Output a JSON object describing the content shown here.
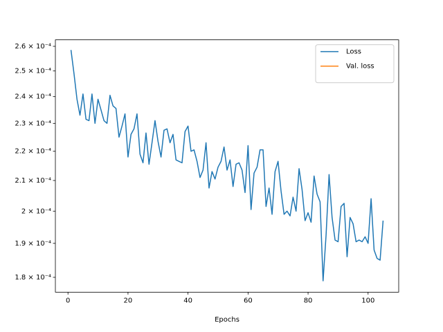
{
  "chart_data": {
    "type": "line",
    "xlabel": "Epochs",
    "x": [
      1,
      2,
      3,
      4,
      5,
      6,
      7,
      8,
      9,
      10,
      11,
      12,
      13,
      14,
      15,
      16,
      17,
      18,
      19,
      20,
      21,
      22,
      23,
      24,
      25,
      26,
      27,
      28,
      29,
      30,
      31,
      32,
      33,
      34,
      35,
      36,
      37,
      38,
      39,
      40,
      41,
      42,
      43,
      44,
      45,
      46,
      47,
      48,
      49,
      50,
      51,
      52,
      53,
      54,
      55,
      56,
      57,
      58,
      59,
      60,
      61,
      62,
      63,
      64,
      65,
      66,
      67,
      68,
      69,
      70,
      71,
      72,
      73,
      74,
      75,
      76,
      77,
      78,
      79,
      80,
      81,
      82,
      83,
      84,
      85,
      86,
      87,
      88,
      89,
      90,
      91,
      92,
      93,
      94,
      95,
      96,
      97,
      98,
      99,
      100,
      101,
      102,
      103,
      104,
      105
    ],
    "series": [
      {
        "name": "Loss",
        "color": "#1f77b4",
        "values": [
          0.0002585,
          0.000249,
          0.000239,
          0.000233,
          0.000241,
          0.0002315,
          0.000231,
          0.000241,
          0.00023,
          0.000239,
          0.000235,
          0.000231,
          0.00023,
          0.0002405,
          0.0002365,
          0.0002355,
          0.000225,
          0.000229,
          0.0002335,
          0.000218,
          0.000226,
          0.000228,
          0.0002335,
          0.000219,
          0.000216,
          0.0002265,
          0.0002155,
          0.000223,
          0.000231,
          0.0002235,
          0.000218,
          0.0002275,
          0.000228,
          0.000223,
          0.000226,
          0.000217,
          0.0002165,
          0.000216,
          0.000227,
          0.000229,
          0.00022,
          0.0002205,
          0.0002165,
          0.000211,
          0.0002135,
          0.000223,
          0.0002075,
          0.000213,
          0.0002105,
          0.0002145,
          0.0002165,
          0.0002215,
          0.0002135,
          0.000217,
          0.000208,
          0.0002155,
          0.000216,
          0.0002135,
          0.000206,
          0.000222,
          0.0002005,
          0.0002125,
          0.0002145,
          0.0002205,
          0.0002205,
          0.0002015,
          0.0002075,
          0.000199,
          0.000213,
          0.0002165,
          0.0002065,
          0.000199,
          0.0002,
          0.0001985,
          0.0002045,
          0.0002,
          0.000214,
          0.000207,
          0.000197,
          0.0001995,
          0.0001965,
          0.0002115,
          0.0002055,
          0.000203,
          0.000179,
          0.0001925,
          0.000212,
          0.000198,
          0.000191,
          0.0001905,
          0.0002015,
          0.0002025,
          0.000186,
          0.000198,
          0.000196,
          0.0001905,
          0.000191,
          0.0001905,
          0.000192,
          0.00019,
          0.000204,
          0.000188,
          0.0001855,
          0.000185,
          0.000197
        ]
      },
      {
        "name": "Val. loss",
        "color": "#ff7f0e",
        "values": [
          null,
          null,
          null,
          null,
          null,
          null,
          null,
          null,
          null,
          null,
          null,
          null,
          null,
          null,
          null,
          null,
          null,
          null,
          null,
          null,
          null,
          null,
          null,
          null,
          null,
          null,
          null,
          null,
          null,
          null,
          null,
          null,
          null,
          null,
          null,
          null,
          null,
          null,
          null,
          null,
          null,
          null,
          null,
          null,
          null,
          null,
          null,
          null,
          null,
          null,
          null,
          null,
          null,
          null,
          null,
          null,
          null,
          null,
          null,
          null,
          null,
          null,
          null,
          null,
          null,
          null,
          null,
          null,
          null,
          null,
          null,
          null,
          null,
          null,
          null,
          null,
          null,
          null,
          null,
          null,
          null,
          null,
          null,
          null,
          null,
          null,
          null,
          null,
          null,
          null,
          null,
          null,
          null,
          null,
          null,
          null,
          null,
          null,
          null,
          null,
          null,
          null,
          null,
          null,
          null
        ]
      }
    ],
    "xlim": [
      -4.2,
      110.2
    ],
    "xticks": [
      0,
      20,
      40,
      60,
      80,
      100
    ],
    "ylim": [
      0.0001758,
      0.0002627
    ],
    "yscale": "log",
    "yticks": [
      {
        "value": 0.00018,
        "label": "1.8 × 10⁻⁴"
      },
      {
        "value": 0.00019,
        "label": "1.9 × 10⁻⁴"
      },
      {
        "value": 0.0002,
        "label": "2 × 10⁻⁴"
      },
      {
        "value": 0.00021,
        "label": "2.1 × 10⁻⁴"
      },
      {
        "value": 0.00022,
        "label": "2.2 × 10⁻⁴"
      },
      {
        "value": 0.00023,
        "label": "2.3 × 10⁻⁴"
      },
      {
        "value": 0.00024,
        "label": "2.4 × 10⁻⁴"
      },
      {
        "value": 0.00025,
        "label": "2.5 × 10⁻⁴"
      },
      {
        "value": 0.00026,
        "label": "2.6 × 10⁻⁴"
      }
    ],
    "legend": "upper right"
  }
}
